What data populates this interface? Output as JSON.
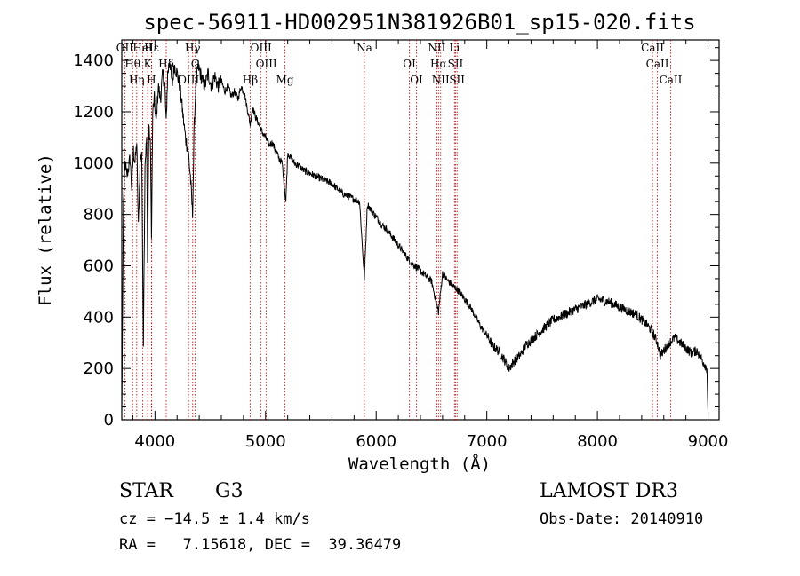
{
  "chart_data": {
    "type": "line",
    "title": "spec-56911-HD002951N381926B01_sp15-020.fits",
    "xlabel": "Wavelength (Å)",
    "ylabel": "Flux (relative)",
    "xlim": [
      3700,
      9100
    ],
    "ylim": [
      0,
      1480
    ],
    "xticks": [
      4000,
      5000,
      6000,
      7000,
      8000,
      9000
    ],
    "yticks": [
      0,
      200,
      400,
      600,
      800,
      1000,
      1200,
      1400
    ],
    "line_color": "#000000",
    "marker_color": "#cc0000",
    "series": [
      {
        "name": "flux",
        "x": [
          3700,
          3715,
          3730,
          3745,
          3760,
          3775,
          3790,
          3805,
          3820,
          3835,
          3850,
          3865,
          3880,
          3895,
          3910,
          3925,
          3933,
          3945,
          3960,
          3968,
          3980,
          3995,
          4010,
          4030,
          4050,
          4070,
          4090,
          4101,
          4115,
          4135,
          4155,
          4175,
          4200,
          4225,
          4250,
          4275,
          4300,
          4320,
          4340,
          4355,
          4370,
          4390,
          4410,
          4430,
          4450,
          4480,
          4510,
          4540,
          4570,
          4600,
          4630,
          4660,
          4690,
          4720,
          4750,
          4780,
          4810,
          4840,
          4861,
          4880,
          4910,
          4940,
          4970,
          5000,
          5030,
          5060,
          5090,
          5120,
          5150,
          5183,
          5200,
          5230,
          5260,
          5300,
          5350,
          5400,
          5450,
          5500,
          5550,
          5600,
          5650,
          5700,
          5750,
          5800,
          5850,
          5893,
          5920,
          5950,
          6000,
          6050,
          6100,
          6150,
          6200,
          6250,
          6300,
          6350,
          6400,
          6450,
          6500,
          6563,
          6600,
          6650,
          6700,
          6750,
          6800,
          6850,
          6900,
          6950,
          7000,
          7050,
          7100,
          7150,
          7200,
          7250,
          7300,
          7350,
          7400,
          7450,
          7500,
          7550,
          7600,
          7650,
          7700,
          7750,
          7800,
          7850,
          7900,
          7950,
          8000,
          8050,
          8100,
          8150,
          8200,
          8250,
          8300,
          8350,
          8400,
          8450,
          8500,
          8542,
          8570,
          8600,
          8650,
          8700,
          8750,
          8800,
          8850,
          8900,
          8950,
          8990,
          9000
        ],
        "y": [
          20,
          850,
          1000,
          950,
          980,
          1020,
          900,
          1050,
          1000,
          1080,
          750,
          1000,
          1050,
          300,
          1000,
          1100,
          600,
          1150,
          1050,
          700,
          1200,
          1250,
          1150,
          1300,
          1250,
          1350,
          1300,
          1150,
          1350,
          1400,
          1300,
          1380,
          1350,
          1300,
          1200,
          1100,
          1050,
          950,
          800,
          1150,
          1300,
          1380,
          1350,
          1320,
          1300,
          1350,
          1300,
          1340,
          1300,
          1320,
          1280,
          1300,
          1260,
          1280,
          1250,
          1300,
          1270,
          1200,
          1150,
          1220,
          1180,
          1150,
          1120,
          1100,
          1070,
          1080,
          1050,
          1020,
          1000,
          850,
          1040,
          1020,
          1000,
          990,
          970,
          960,
          950,
          940,
          930,
          920,
          900,
          880,
          870,
          860,
          850,
          550,
          840,
          820,
          790,
          760,
          740,
          710,
          680,
          650,
          620,
          600,
          580,
          560,
          540,
          420,
          570,
          540,
          520,
          500,
          470,
          440,
          400,
          360,
          330,
          290,
          270,
          240,
          200,
          230,
          250,
          290,
          310,
          330,
          350,
          370,
          390,
          400,
          410,
          420,
          430,
          440,
          450,
          460,
          470,
          465,
          460,
          450,
          440,
          430,
          420,
          410,
          390,
          370,
          340,
          300,
          250,
          270,
          300,
          320,
          300,
          280,
          260,
          270,
          230,
          200,
          20
        ]
      }
    ],
    "lines": [
      {
        "name": "OII",
        "x": 3727
      },
      {
        "name": "Hθ",
        "x": 3798
      },
      {
        "name": "Hη",
        "x": 3835
      },
      {
        "name": "HeI",
        "x": 3889
      },
      {
        "name": "K",
        "x": 3934
      },
      {
        "name": "H",
        "x": 3968
      },
      {
        "name": "Hε",
        "x": 3970
      },
      {
        "name": "Hδ",
        "x": 4102
      },
      {
        "name": "OIII",
        "x": 4304
      },
      {
        "name": "Hγ",
        "x": 4341
      },
      {
        "name": "G",
        "x": 4363
      },
      {
        "name": "Hβ",
        "x": 4861
      },
      {
        "name": "OIII",
        "x": 4959
      },
      {
        "name": "OIII",
        "x": 5007
      },
      {
        "name": "Mg",
        "x": 5175
      },
      {
        "name": "Na",
        "x": 5893
      },
      {
        "name": "OI",
        "x": 6300
      },
      {
        "name": "OI",
        "x": 6364
      },
      {
        "name": "NII",
        "x": 6548
      },
      {
        "name": "Hα",
        "x": 6563
      },
      {
        "name": "NII",
        "x": 6583
      },
      {
        "name": "Li",
        "x": 6708
      },
      {
        "name": "SII",
        "x": 6717
      },
      {
        "name": "SII",
        "x": 6731
      },
      {
        "name": "CaII",
        "x": 8498
      },
      {
        "name": "CaII",
        "x": 8542
      },
      {
        "name": "CaII",
        "x": 8662
      }
    ]
  },
  "info": {
    "class": "STAR",
    "subclass": "G3",
    "survey": "LAMOST DR3",
    "redshift": "cz = −14.5 ± 1.4 km/s",
    "obs_date": "Obs-Date: 20140910",
    "coords": "RA =   7.15618, DEC =  39.36479"
  }
}
